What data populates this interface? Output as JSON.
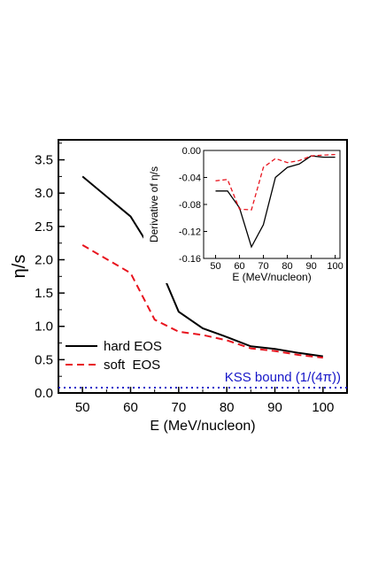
{
  "chart_data": [
    {
      "type": "line",
      "xlabel": "E (MeV/nucleon)",
      "ylabel": "η/s",
      "xlim": [
        45,
        105
      ],
      "ylim": [
        0,
        3.8
      ],
      "xticks": [
        "50",
        "60",
        "70",
        "80",
        "90",
        "100"
      ],
      "yticks": [
        "0.0",
        "0.5",
        "1.0",
        "1.5",
        "2.0",
        "2.5",
        "3.0",
        "3.5"
      ],
      "legend_position": "bottom-left",
      "series": [
        {
          "name": "hard EOS",
          "color": "#000000",
          "dash": "solid",
          "x": [
            50,
            60,
            65,
            70,
            75,
            80,
            85,
            90,
            95,
            100
          ],
          "y": [
            3.25,
            2.65,
            2.07,
            1.22,
            0.97,
            0.84,
            0.7,
            0.66,
            0.6,
            0.55
          ]
        },
        {
          "name": "soft  EOS",
          "color": "#e8141e",
          "dash": "dashed",
          "x": [
            50,
            60,
            65,
            70,
            75,
            80,
            85,
            90,
            95,
            100
          ],
          "y": [
            2.22,
            1.8,
            1.1,
            0.92,
            0.87,
            0.79,
            0.67,
            0.63,
            0.57,
            0.53
          ]
        }
      ],
      "reference_line": {
        "label": "KSS bound (1/(4π))",
        "y": 0.0796,
        "color": "#1515c8",
        "dash": "dotted"
      }
    },
    {
      "type": "line",
      "inset": true,
      "xlabel": "E (MeV/nucleon)",
      "ylabel": "Derivative of η/s",
      "xlim": [
        45,
        102
      ],
      "ylim": [
        -0.16,
        0.0
      ],
      "xticks": [
        "50",
        "60",
        "70",
        "80",
        "90",
        "100"
      ],
      "yticks": [
        "0.00",
        "-0.04",
        "-0.08",
        "-0.12",
        "-0.16"
      ],
      "series": [
        {
          "name": "hard EOS",
          "color": "#000000",
          "dash": "solid",
          "x": [
            50,
            55,
            60,
            65,
            70,
            75,
            80,
            85,
            90,
            95,
            100
          ],
          "y": [
            -0.06,
            -0.06,
            -0.085,
            -0.143,
            -0.11,
            -0.04,
            -0.025,
            -0.02,
            -0.008,
            -0.01,
            -0.01
          ]
        },
        {
          "name": "soft EOS",
          "color": "#e8141e",
          "dash": "dashed",
          "x": [
            50,
            55,
            60,
            65,
            70,
            75,
            80,
            85,
            90,
            95,
            100
          ],
          "y": [
            -0.045,
            -0.043,
            -0.087,
            -0.088,
            -0.025,
            -0.012,
            -0.018,
            -0.015,
            -0.008,
            -0.007,
            -0.006
          ]
        }
      ]
    }
  ]
}
